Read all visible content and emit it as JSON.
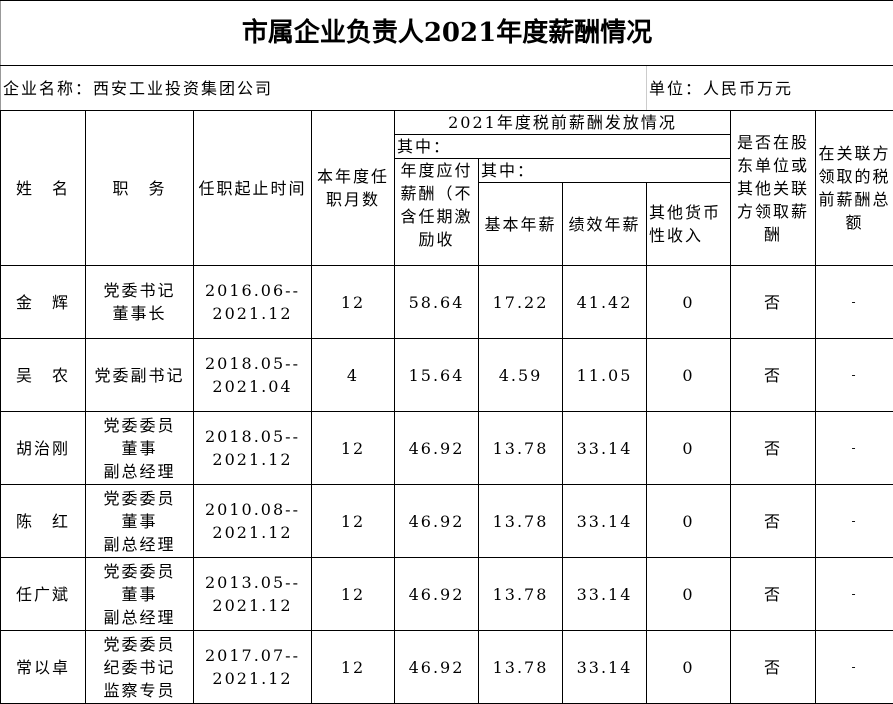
{
  "title": "市属企业负责人2021年度薪酬情况",
  "company": "企业名称：西安工业投资集团公司",
  "unit": "单位：人民币万元",
  "headers": {
    "name": "姓　名",
    "position": "职　务",
    "term": "任职起止时间",
    "months": "本年度任职月数",
    "group": "2021年度税前薪酬发放情况",
    "of_which": "其中：",
    "payable": "年度应付薪酬（不含任期激励收",
    "of_which2": "其中：",
    "basic": "基本年薪",
    "performance": "绩效年薪",
    "other": "其他货币性收入",
    "shareholder": "是否在股东单位或其他关联方领取薪酬",
    "related_total": "在关联方领取的税前薪酬总额"
  },
  "rows": [
    {
      "name": "金　辉",
      "position": "党委书记\n董事长",
      "term": "2016.06--\n2021.12",
      "months": "12",
      "payable": "58.64",
      "basic": "17.22",
      "performance": "41.42",
      "other": "0",
      "shareholder": "否",
      "related": "-"
    },
    {
      "name": "吴　农",
      "position": "党委副书记",
      "term": "2018.05--\n2021.04",
      "months": "4",
      "payable": "15.64",
      "basic": "4.59",
      "performance": "11.05",
      "other": "0",
      "shareholder": "否",
      "related": "-"
    },
    {
      "name": "胡治刚",
      "position": "党委委员\n董事\n副总经理",
      "term": "2018.05--\n2021.12",
      "months": "12",
      "payable": "46.92",
      "basic": "13.78",
      "performance": "33.14",
      "other": "0",
      "shareholder": "否",
      "related": "-"
    },
    {
      "name": "陈　红",
      "position": "党委委员\n董事\n副总经理",
      "term": "2010.08--\n2021.12",
      "months": "12",
      "payable": "46.92",
      "basic": "13.78",
      "performance": "33.14",
      "other": "0",
      "shareholder": "否",
      "related": "-"
    },
    {
      "name": "任广斌",
      "position": "党委委员\n董事\n副总经理",
      "term": "2013.05--\n2021.12",
      "months": "12",
      "payable": "46.92",
      "basic": "13.78",
      "performance": "33.14",
      "other": "0",
      "shareholder": "否",
      "related": "-"
    },
    {
      "name": "常以卓",
      "position": "党委委员\n纪委书记\n监察专员",
      "term": "2017.07--\n2021.12",
      "months": "12",
      "payable": "46.92",
      "basic": "13.78",
      "performance": "33.14",
      "other": "0",
      "shareholder": "否",
      "related": "-"
    }
  ]
}
